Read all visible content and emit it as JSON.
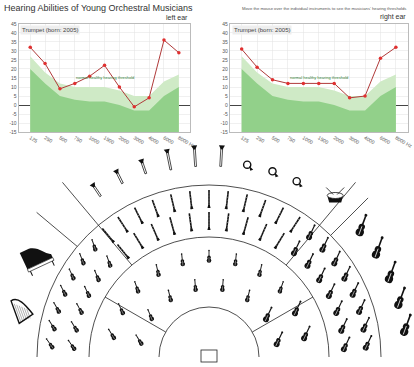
{
  "title": "Hearing Abilities of Young Orchestral Musicians",
  "note": "Move the mouse over the individual instruments to see the musicians' hearing thresholds",
  "chart_data": [
    {
      "type": "line",
      "title": "Trumpet (born: 2005)",
      "subtitle": "left ear",
      "categories": [
        "125",
        "250",
        "500",
        "750",
        "1000",
        "1500",
        "2000",
        "3000",
        "4000",
        "6000",
        "8000 Hz"
      ],
      "ylim": [
        -15,
        45
      ],
      "yticks": [
        -15,
        -10,
        -5,
        0,
        5,
        10,
        15,
        20,
        25,
        30,
        35,
        40,
        45
      ],
      "grid": true,
      "annotations": [
        "normal healthy hearing threshold"
      ],
      "series": [
        {
          "type": "area",
          "color": "#cfeac6",
          "values": [
            27,
            18,
            12,
            10,
            10,
            10,
            8,
            5,
            5,
            13,
            17
          ]
        },
        {
          "type": "area",
          "color": "#92d08a",
          "values": [
            20,
            12,
            5,
            3,
            2,
            2,
            0,
            -3,
            -3,
            5,
            10
          ]
        },
        {
          "type": "line",
          "color": "#b03a3a",
          "marker": "circle",
          "values": [
            32,
            23,
            9,
            12,
            16,
            22,
            10,
            -1,
            4,
            36,
            29
          ]
        }
      ]
    },
    {
      "type": "line",
      "title": "Trumpet (born: 2005)",
      "subtitle": "right ear",
      "categories": [
        "125",
        "250",
        "500",
        "750",
        "1000",
        "1500",
        "2000",
        "3000",
        "4000",
        "6000",
        "8000 Hz"
      ],
      "ylim": [
        -15,
        45
      ],
      "yticks": [
        -15,
        -10,
        -5,
        0,
        5,
        10,
        15,
        20,
        25,
        30,
        35,
        40,
        45
      ],
      "grid": true,
      "annotations": [
        "normal healthy hearing threshold"
      ],
      "series": [
        {
          "type": "area",
          "color": "#cfeac6",
          "values": [
            27,
            18,
            12,
            10,
            10,
            10,
            8,
            5,
            5,
            13,
            17
          ]
        },
        {
          "type": "area",
          "color": "#92d08a",
          "values": [
            20,
            12,
            5,
            3,
            2,
            2,
            0,
            -3,
            -3,
            5,
            10
          ]
        },
        {
          "type": "line",
          "color": "#b03a3a",
          "marker": "circle",
          "values": [
            31,
            21,
            14,
            12,
            12,
            12,
            12,
            4,
            5,
            26,
            32
          ]
        }
      ]
    }
  ]
}
